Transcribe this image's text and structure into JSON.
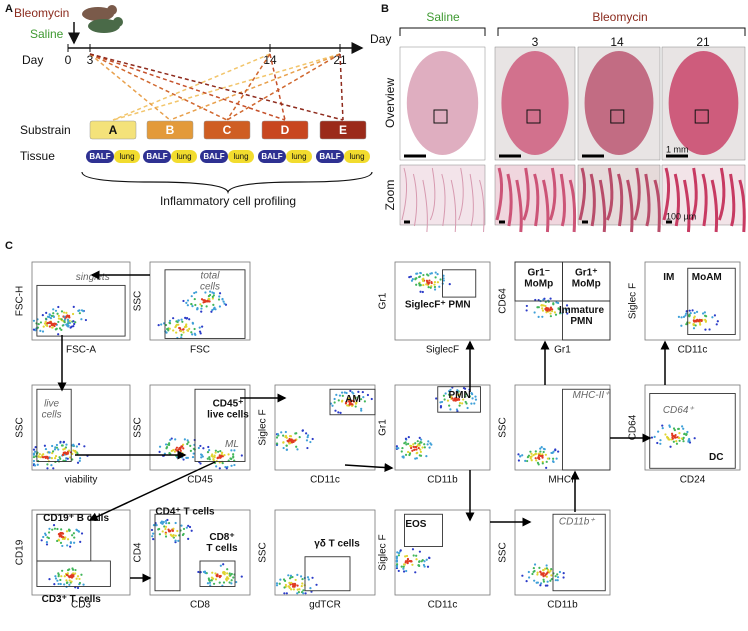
{
  "panel_a": {
    "label": "A",
    "treatments": [
      "Bleomycin",
      "Saline"
    ],
    "day_label": "Day",
    "days": [
      "0",
      "3",
      "14",
      "21"
    ],
    "substrain_label": "Substrain",
    "substrains": [
      "A",
      "B",
      "C",
      "D",
      "E"
    ],
    "tissue_label": "Tissue",
    "tissues": [
      "BALF",
      "lung"
    ],
    "caption": "Inflammatory cell profiling"
  },
  "panel_b": {
    "label": "B",
    "groups": [
      "Saline",
      "Bleomycin"
    ],
    "day_label": "Day",
    "days": [
      "3",
      "14",
      "21"
    ],
    "rows": [
      "Overview",
      "Zoom"
    ],
    "scale_bars": [
      "1 mm",
      "100 µm"
    ]
  },
  "panel_c": {
    "label": "C",
    "plots": [
      {
        "y_label": "FSC-H",
        "x_label": "FSC-A",
        "gates": [
          [
            "singlets"
          ]
        ]
      },
      {
        "y_label": "SSC",
        "x_label": "FSC",
        "gates": [
          [
            "total",
            "cells"
          ]
        ]
      },
      {
        "y_label": "Gr1",
        "x_label": "SiglecF",
        "gates": [
          [
            "SiglecF⁺ PMN"
          ]
        ]
      },
      {
        "y_label": "CD64",
        "x_label": "Gr1",
        "gates": [
          [
            "Gr1⁻",
            "MoMp"
          ],
          [
            "Gr1⁺",
            "MoMp"
          ],
          [
            "Immature",
            "PMN"
          ]
        ]
      },
      {
        "y_label": "Siglec F",
        "x_label": "CD11c",
        "gates": [
          [
            "IM"
          ],
          [
            "MoAM"
          ]
        ]
      },
      {
        "y_label": "SSC",
        "x_label": "viability",
        "gates": [
          [
            "live",
            "cells"
          ]
        ]
      },
      {
        "y_label": "SSC",
        "x_label": "CD45",
        "gates": [
          [
            "CD45⁺",
            "live cells"
          ],
          [
            "ML"
          ]
        ]
      },
      {
        "y_label": "Siglec F",
        "x_label": "CD11c",
        "gates": [
          [
            "AM"
          ]
        ]
      },
      {
        "y_label": "Gr1",
        "x_label": "CD11b",
        "gates": [
          [
            "PMN"
          ]
        ]
      },
      {
        "y_label": "SSC",
        "x_label": "MHCII",
        "gates": [
          [
            "MHC-II⁺"
          ]
        ]
      },
      {
        "y_label": "CD64",
        "x_label": "CD24",
        "gates": [
          [
            "CD64⁺"
          ],
          [
            "DC"
          ]
        ]
      },
      {
        "y_label": "CD19",
        "x_label": "CD3",
        "gates": [
          [
            "CD19⁺ B cells"
          ],
          [
            "CD3⁺ T cells"
          ]
        ]
      },
      {
        "y_label": "CD4",
        "x_label": "CD8",
        "gates": [
          [
            "CD4⁺ T cells"
          ],
          [
            "CD8⁺",
            "T cells"
          ]
        ]
      },
      {
        "y_label": "SSC",
        "x_label": "gdTCR",
        "gates": [
          [
            "γδ T cells"
          ]
        ]
      },
      {
        "y_label": "Siglec F",
        "x_label": "CD11c",
        "gates": [
          [
            "EOS"
          ]
        ]
      },
      {
        "y_label": "SSC",
        "x_label": "CD11b",
        "gates": [
          [
            "CD11b⁺"
          ]
        ]
      }
    ]
  }
}
